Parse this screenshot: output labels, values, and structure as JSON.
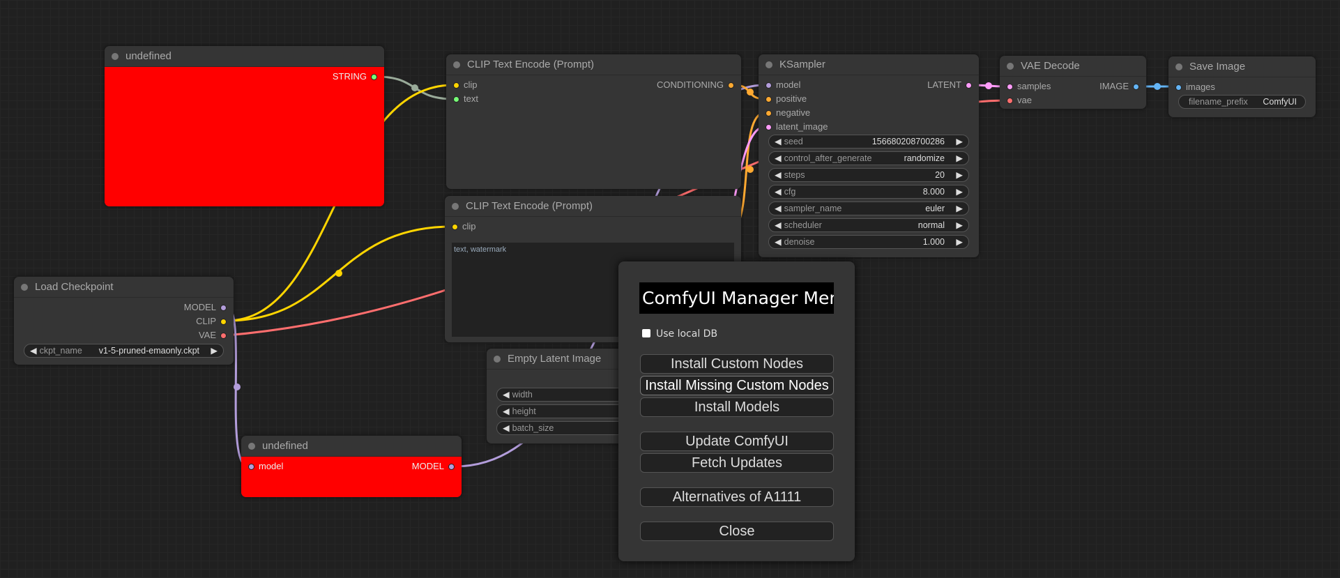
{
  "colors": {
    "clip": "#ffd500",
    "string": "#9a9",
    "model": "#b39ddb",
    "conditioning": "#ffa931",
    "latent": "#ff9cf9",
    "vae": "#ff6e6e",
    "image": "#64b5f6",
    "text": "#7f7"
  },
  "nodes": {
    "undefined_top": {
      "title": "undefined",
      "output": "STRING"
    },
    "clip1": {
      "title": "CLIP Text Encode (Prompt)",
      "inputs": [
        "clip",
        "text"
      ],
      "output": "CONDITIONING"
    },
    "clip2": {
      "title": "CLIP Text Encode (Prompt)",
      "inputs": [
        "clip"
      ],
      "text": "text, watermark"
    },
    "ksampler": {
      "title": "KSampler",
      "inputs": [
        "model",
        "positive",
        "negative",
        "latent_image"
      ],
      "output": "LATENT",
      "widgets": [
        {
          "label": "seed",
          "value": "156680208700286"
        },
        {
          "label": "control_after_generate",
          "value": "randomize"
        },
        {
          "label": "steps",
          "value": "20"
        },
        {
          "label": "cfg",
          "value": "8.000"
        },
        {
          "label": "sampler_name",
          "value": "euler"
        },
        {
          "label": "scheduler",
          "value": "normal"
        },
        {
          "label": "denoise",
          "value": "1.000"
        }
      ]
    },
    "vae_decode": {
      "title": "VAE Decode",
      "inputs": [
        "samples",
        "vae"
      ],
      "output": "IMAGE"
    },
    "save_image": {
      "title": "Save Image",
      "inputs": [
        "images"
      ],
      "widget": {
        "label": "filename_prefix",
        "value": "ComfyUI"
      }
    },
    "load_checkpoint": {
      "title": "Load Checkpoint",
      "outputs": [
        "MODEL",
        "CLIP",
        "VAE"
      ],
      "widget": {
        "label": "ckpt_name",
        "value": "v1-5-pruned-emaonly.ckpt"
      }
    },
    "empty_latent": {
      "title": "Empty Latent Image",
      "widgets": [
        "width",
        "height",
        "batch_size"
      ]
    },
    "undefined_bottom": {
      "title": "undefined",
      "input": "model",
      "output": "MODEL"
    }
  },
  "manager_menu": {
    "title": "ComfyUI Manager Menu",
    "use_local_db": "Use local DB",
    "use_local_db_checked": false,
    "buttons": [
      "Install Custom Nodes",
      "Install Missing Custom Nodes",
      "Install Models",
      "Update ComfyUI",
      "Fetch Updates",
      "Alternatives of A1111",
      "Close"
    ]
  }
}
